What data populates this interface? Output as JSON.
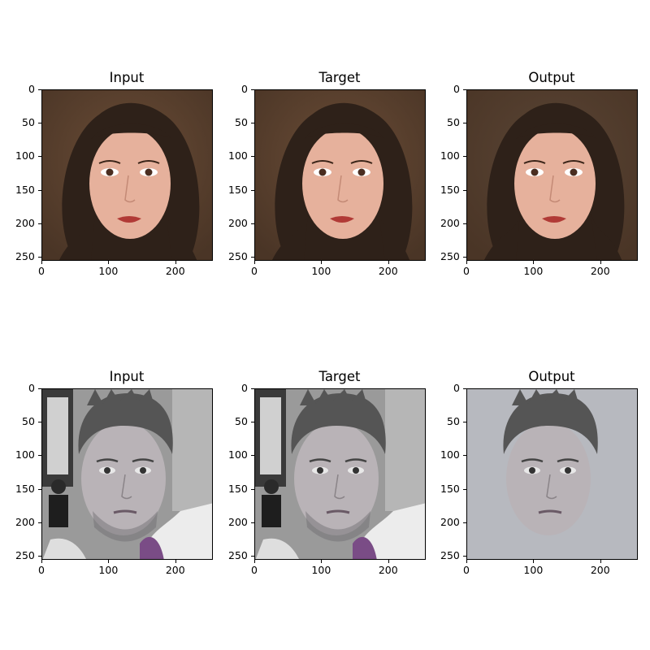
{
  "figure": {
    "panels": [
      {
        "title": "Input",
        "image": "woman-portrait",
        "subject": "woman"
      },
      {
        "title": "Target",
        "image": "woman-portrait",
        "subject": "woman"
      },
      {
        "title": "Output",
        "image": "woman-portrait-generated",
        "subject": "woman"
      },
      {
        "title": "Input",
        "image": "man-portrait-grayscale",
        "subject": "man"
      },
      {
        "title": "Target",
        "image": "man-portrait-grayscale",
        "subject": "man"
      },
      {
        "title": "Output",
        "image": "man-portrait-generated",
        "subject": "man"
      }
    ],
    "x_ticks": [
      "0",
      "100",
      "200"
    ],
    "y_ticks": [
      "0",
      "50",
      "100",
      "150",
      "200",
      "250"
    ],
    "axis_range": [
      0,
      256
    ]
  },
  "colors": {
    "woman_bg": "#4a3526",
    "woman_hair": "#2e2119",
    "woman_skin": "#e6b19c",
    "woman_lips": "#b13a36",
    "man_bg_gray": "#9a9a9a",
    "man_hair": "#555555",
    "man_skin": "#b9b3b7",
    "man_purple": "#7a4c86",
    "man_output_bg": "#aeb0b6"
  }
}
